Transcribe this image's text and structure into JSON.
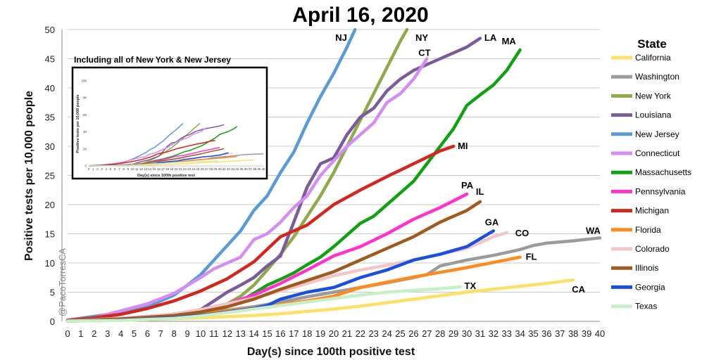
{
  "chart_data": {
    "type": "line",
    "title": "April 16, 2020",
    "xlabel": "Day(s) since 100th positive test",
    "ylabel": "Positive tests per 10,000 people",
    "xlim": [
      0,
      40
    ],
    "ylim": [
      0,
      50
    ],
    "x_ticks": [
      0,
      1,
      2,
      3,
      4,
      5,
      6,
      7,
      8,
      9,
      10,
      11,
      12,
      13,
      14,
      15,
      16,
      17,
      18,
      19,
      20,
      21,
      22,
      23,
      24,
      25,
      26,
      27,
      28,
      29,
      30,
      31,
      32,
      33,
      34,
      35,
      36,
      37,
      38,
      39,
      40
    ],
    "y_ticks": [
      0,
      5,
      10,
      15,
      20,
      25,
      30,
      35,
      40,
      45,
      50
    ],
    "grid": "horizontal",
    "legend_title": "State",
    "legend_position": "right",
    "watermark": "@PacoTorresCA",
    "series": [
      {
        "name": "California",
        "label": "CA",
        "color": "#FFE066",
        "x": [
          0,
          2,
          4,
          6,
          8,
          10,
          12,
          14,
          16,
          18,
          20,
          22,
          24,
          26,
          28,
          30,
          32,
          34,
          36,
          38
        ],
        "y": [
          0.1,
          0.15,
          0.2,
          0.3,
          0.45,
          0.6,
          0.8,
          1.0,
          1.3,
          1.7,
          2.1,
          2.6,
          3.2,
          3.8,
          4.4,
          5.0,
          5.5,
          6.0,
          6.5,
          7.1
        ]
      },
      {
        "name": "Washington",
        "label": "WA",
        "color": "#9B9B9B",
        "x": [
          0,
          2,
          4,
          6,
          8,
          10,
          12,
          14,
          16,
          18,
          20,
          22,
          24,
          26,
          27,
          28,
          30,
          32,
          34,
          35,
          36,
          38,
          40
        ],
        "y": [
          0.2,
          0.35,
          0.5,
          0.7,
          1.0,
          1.4,
          1.9,
          2.5,
          3.3,
          4.2,
          5.0,
          5.8,
          6.6,
          7.5,
          8.0,
          9.5,
          10.5,
          11.3,
          12.3,
          13.0,
          13.4,
          13.8,
          14.3
        ]
      },
      {
        "name": "New York",
        "label": "NY",
        "color": "#8FAA4A",
        "x": [
          0,
          4,
          8,
          10,
          12,
          13,
          14,
          15,
          16,
          17,
          18,
          19,
          20,
          21,
          22,
          23,
          24,
          25,
          25.5
        ],
        "y": [
          0.1,
          0.3,
          1.0,
          1.8,
          3.0,
          4.3,
          6.2,
          8.8,
          11.5,
          14.5,
          18.0,
          21.5,
          25.5,
          30.0,
          34.5,
          39.0,
          43.5,
          48.0,
          50
        ]
      },
      {
        "name": "Louisiana",
        "label": "LA",
        "color": "#7A5C9B",
        "x": [
          0,
          4,
          8,
          10,
          11,
          12,
          13,
          14,
          15,
          16,
          17,
          18,
          19,
          20,
          21,
          22,
          23,
          24,
          25,
          26,
          28,
          30,
          31
        ],
        "y": [
          0.2,
          0.5,
          1.2,
          2.0,
          3.5,
          5.0,
          6.2,
          7.5,
          9.5,
          11.2,
          17.0,
          23.0,
          27.0,
          28.0,
          32.0,
          35.0,
          36.5,
          39.5,
          41.5,
          43.0,
          45.0,
          47.0,
          48.5
        ]
      },
      {
        "name": "New Jersey",
        "label": "NJ",
        "color": "#5B9BD5",
        "x": [
          0,
          4,
          6,
          8,
          9,
          10,
          11,
          12,
          13,
          14,
          15,
          16,
          17,
          18,
          19,
          20,
          21,
          21.6
        ],
        "y": [
          0.2,
          1.5,
          2.5,
          4.5,
          6.2,
          8.0,
          10.5,
          13.0,
          15.5,
          19.0,
          21.5,
          25.5,
          29.0,
          34.0,
          38.5,
          42.5,
          47.0,
          50
        ]
      },
      {
        "name": "Connecticut",
        "label": "CT",
        "color": "#D48DF2",
        "x": [
          0,
          2,
          4,
          6,
          8,
          10,
          11,
          12,
          13,
          14,
          15,
          16,
          17,
          18,
          19,
          20,
          21,
          22,
          23,
          24,
          25,
          26,
          27
        ],
        "y": [
          0.2,
          0.6,
          1.8,
          3.0,
          4.8,
          7.5,
          9.0,
          10.0,
          11.0,
          14.0,
          15.0,
          17.0,
          19.5,
          21.5,
          25.0,
          27.5,
          30.0,
          32.0,
          34.0,
          37.5,
          39.0,
          41.5,
          45.0
        ]
      },
      {
        "name": "Massachusetts",
        "label": "MA",
        "color": "#11A011",
        "x": [
          0,
          4,
          8,
          10,
          12,
          13,
          14,
          15,
          16,
          17,
          18,
          19,
          20,
          21,
          22,
          23,
          24,
          25,
          26,
          27,
          28,
          29,
          30,
          31,
          32,
          33,
          34
        ],
        "y": [
          0.1,
          0.4,
          1.2,
          1.8,
          2.5,
          3.5,
          4.8,
          6.2,
          7.2,
          8.3,
          9.7,
          11.0,
          12.8,
          14.8,
          16.8,
          18.0,
          20.0,
          22.0,
          24.0,
          27.0,
          30.0,
          33.0,
          37.0,
          38.8,
          40.5,
          43.0,
          46.5
        ]
      },
      {
        "name": "Pennsylvania",
        "label": "PA",
        "color": "#FF33CC",
        "x": [
          0,
          4,
          8,
          10,
          12,
          14,
          16,
          18,
          20,
          22,
          24,
          26,
          28,
          30
        ],
        "y": [
          0.1,
          0.4,
          1.2,
          2.0,
          3.0,
          4.5,
          6.5,
          8.8,
          11.2,
          12.8,
          15.0,
          17.5,
          19.5,
          21.8
        ]
      },
      {
        "name": "Michigan",
        "label": "MI",
        "color": "#D2271E",
        "x": [
          0,
          2,
          4,
          6,
          8,
          10,
          12,
          14,
          16,
          18,
          20,
          22,
          24,
          26,
          28,
          29
        ],
        "y": [
          0.2,
          0.6,
          1.2,
          2.2,
          3.5,
          5.2,
          7.3,
          10.2,
          14.5,
          16.5,
          20.0,
          22.5,
          24.8,
          27.0,
          29.2,
          30.0
        ]
      },
      {
        "name": "Florida",
        "label": "FL",
        "color": "#FF8A1E",
        "x": [
          0,
          4,
          8,
          10,
          12,
          14,
          16,
          18,
          20,
          22,
          24,
          26,
          28,
          30,
          32,
          34
        ],
        "y": [
          0.05,
          0.2,
          0.8,
          1.3,
          1.8,
          2.3,
          2.9,
          3.5,
          4.3,
          5.8,
          6.7,
          7.6,
          8.4,
          9.2,
          10.1,
          11.0
        ]
      },
      {
        "name": "Colorado",
        "label": "CO",
        "color": "#F2C6C6",
        "x": [
          0,
          4,
          8,
          10,
          12,
          14,
          16,
          18,
          20,
          22,
          24,
          26,
          28,
          30,
          32,
          33
        ],
        "y": [
          0.1,
          0.5,
          1.2,
          2.0,
          3.0,
          4.0,
          5.2,
          6.5,
          7.8,
          8.8,
          9.6,
          10.5,
          11.5,
          12.5,
          14.5,
          15.2
        ]
      },
      {
        "name": "Illinois",
        "label": "IL",
        "color": "#A0591E",
        "x": [
          0,
          4,
          8,
          10,
          12,
          14,
          16,
          18,
          20,
          22,
          24,
          26,
          28,
          30,
          31
        ],
        "y": [
          0.1,
          0.4,
          1.0,
          1.6,
          2.5,
          3.8,
          5.5,
          7.0,
          8.5,
          10.5,
          12.5,
          14.5,
          17.0,
          19.0,
          20.5
        ]
      },
      {
        "name": "Georgia",
        "label": "GA",
        "color": "#1B4FE0",
        "x": [
          0,
          4,
          8,
          10,
          12,
          14,
          15,
          16,
          18,
          20,
          22,
          24,
          26,
          28,
          30,
          32
        ],
        "y": [
          0.05,
          0.2,
          0.6,
          1.0,
          1.6,
          2.2,
          2.7,
          3.8,
          5.0,
          5.8,
          7.5,
          8.8,
          10.5,
          11.5,
          12.8,
          15.5
        ]
      },
      {
        "name": "Texas",
        "label": "TX",
        "color": "#C8F0C8",
        "x": [
          0,
          4,
          8,
          10,
          12,
          14,
          16,
          18,
          20,
          22,
          24,
          26,
          28,
          29.5
        ],
        "y": [
          0.05,
          0.15,
          0.5,
          0.9,
          1.5,
          2.1,
          2.7,
          3.3,
          3.9,
          4.5,
          5.0,
          5.3,
          5.6,
          5.9
        ]
      }
    ]
  },
  "inset": {
    "title": "Including all of New York & New Jersey",
    "ylabel": "Positive tests per 10,000 people",
    "xlabel": "Day(s) since 100th positive test",
    "ylim": [
      0,
      100
    ],
    "y_ticks": [
      0,
      20,
      40,
      60,
      80,
      100
    ],
    "xlim": [
      0,
      40
    ]
  }
}
